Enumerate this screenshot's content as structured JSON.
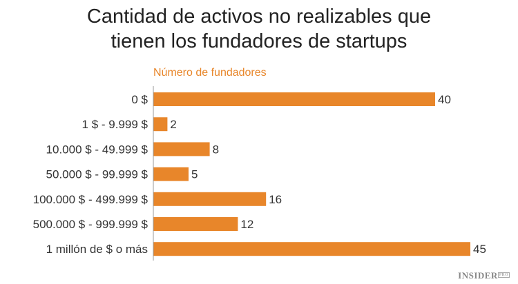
{
  "chart_data": {
    "type": "bar",
    "orientation": "horizontal",
    "title": "Cantidad de activos no realizables que tienen los fundadores de startups",
    "title_lines": [
      "Cantidad de activos no realizables que",
      "tienen los fundadores de startups"
    ],
    "xlabel": "Número de fundadores",
    "ylabel": "",
    "categories": [
      "0 $",
      "1 $ - 9.999 $",
      "10.000 $ - 49.999 $",
      "50.000 $ - 99.999 $",
      "100.000 $ - 499.999 $",
      "500.000 $ - 999.999 $",
      "1 millón de $ o más"
    ],
    "values": [
      40,
      2,
      8,
      5,
      16,
      12,
      45
    ],
    "xlim": [
      0,
      50
    ],
    "grid": false,
    "data_labels": true,
    "bar_color": "#E8862A"
  },
  "branding": {
    "logo": "INSIDER",
    "logo_sub": "PRO"
  }
}
